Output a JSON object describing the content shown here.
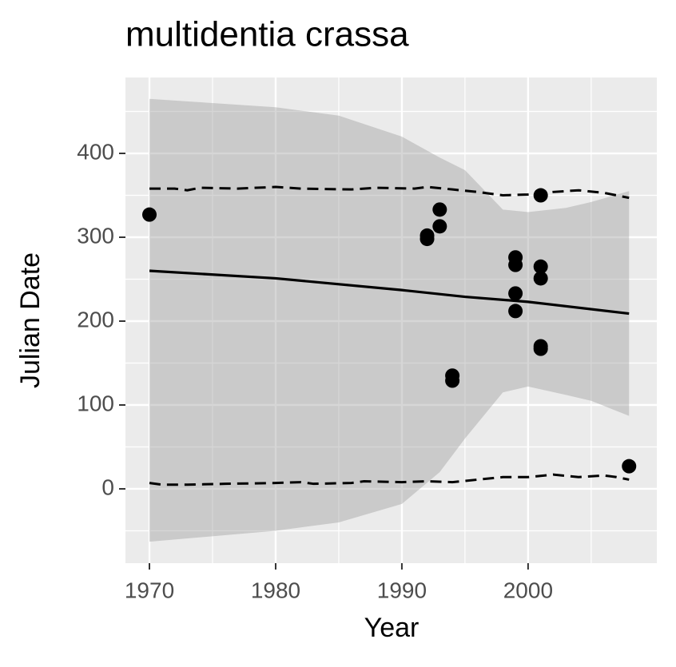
{
  "chart_data": {
    "type": "scatter",
    "title": "multidentia crassa",
    "x_label": "Year",
    "y_label": "Julian Date",
    "xlim": [
      1968.1,
      2010.2
    ],
    "ylim": [
      -88.6,
      490.5
    ],
    "xticks": [
      1970,
      1980,
      1990,
      2000
    ],
    "yticks": [
      0,
      100,
      200,
      300,
      400
    ],
    "x_minor_breaks": [
      1975,
      1985,
      1995,
      2005
    ],
    "y_minor_breaks": [
      -50,
      50,
      150,
      250,
      350,
      450
    ],
    "grid": true,
    "color": "#000000",
    "x": [
      1970,
      1992,
      1992,
      1993,
      1993,
      1994,
      1994,
      1999,
      1999,
      1999,
      1999,
      2001,
      2001,
      2001,
      2001,
      2001,
      2008
    ],
    "values": [
      327,
      302,
      298,
      333,
      313,
      135,
      129,
      276,
      267,
      233,
      212,
      350,
      265,
      251,
      170,
      167,
      27
    ],
    "smooth": {
      "x": [
        1970,
        1980,
        1990,
        1995,
        2000,
        2008
      ],
      "values": [
        260,
        251,
        237,
        229,
        223,
        209
      ]
    },
    "ribbon": {
      "color": "#999999",
      "x": [
        1970,
        1980,
        1985,
        1990,
        1993,
        1995,
        1998,
        2000,
        2003,
        2005,
        2008
      ],
      "upper": [
        465,
        455,
        445,
        420,
        395,
        380,
        333,
        330,
        335,
        342,
        355
      ],
      "lower": [
        -63,
        -50,
        -40,
        -18,
        20,
        60,
        115,
        122,
        112,
        105,
        87
      ]
    },
    "quantile_lines": [
      {
        "x": [
          1970,
          1972,
          1973,
          1974,
          1977,
          1980,
          1982,
          1986,
          1988,
          1991,
          1992,
          1994,
          1996,
          1998,
          2000,
          2002,
          2004,
          2006,
          2008
        ],
        "values": [
          358,
          358,
          356,
          359,
          358,
          360,
          358,
          357,
          359,
          358,
          360,
          357,
          354,
          350,
          351,
          354,
          356,
          353,
          347
        ]
      },
      {
        "x": [
          1970,
          1971,
          1973,
          1976,
          1980,
          1982,
          1983,
          1986,
          1987,
          1990,
          1992,
          1994,
          1996,
          1998,
          2000,
          2002,
          2004,
          2006,
          2007,
          2008
        ],
        "values": [
          7,
          5,
          5,
          6,
          7,
          8,
          6,
          7,
          9,
          8,
          9,
          8,
          11,
          14,
          14,
          17,
          14,
          16,
          14,
          11
        ]
      }
    ]
  }
}
